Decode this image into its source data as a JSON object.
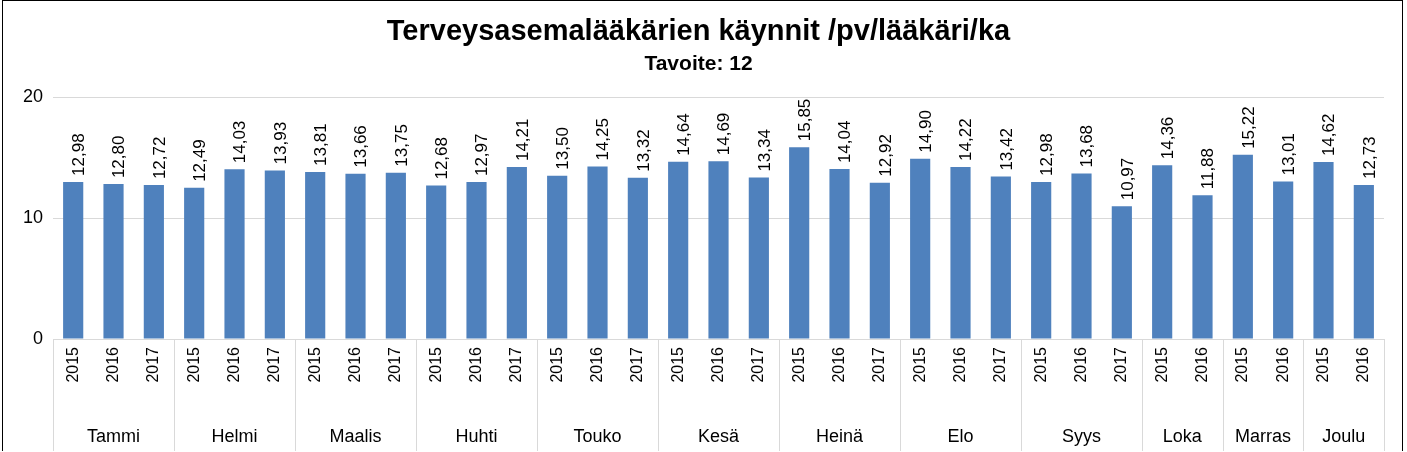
{
  "chart_data": {
    "type": "bar",
    "title": "Terveysasemalääkärien käynnit /pv/lääkäri/ka",
    "subtitle": "Tavoite: 12",
    "categories": [
      "2015",
      "2016",
      "2017",
      "2015",
      "2016",
      "2017",
      "2015",
      "2016",
      "2017",
      "2015",
      "2016",
      "2017",
      "2015",
      "2016",
      "2017",
      "2015",
      "2016",
      "2017",
      "2015",
      "2016",
      "2017",
      "2015",
      "2016",
      "2017",
      "2015",
      "2016",
      "2017",
      "2015",
      "2016",
      "2015",
      "2016",
      "2015",
      "2016"
    ],
    "values": [
      12.98,
      12.8,
      12.72,
      12.49,
      14.03,
      13.93,
      13.81,
      13.66,
      13.75,
      12.68,
      12.97,
      14.21,
      13.5,
      14.25,
      13.32,
      14.64,
      14.69,
      13.34,
      15.85,
      14.04,
      12.92,
      14.9,
      14.22,
      13.42,
      12.98,
      13.68,
      10.97,
      14.36,
      11.88,
      15.22,
      13.01,
      14.62,
      12.73
    ],
    "value_labels": [
      "12,98",
      "12,80",
      "12,72",
      "12,49",
      "14,03",
      "13,93",
      "13,81",
      "13,66",
      "13,75",
      "12,68",
      "12,97",
      "14,21",
      "13,50",
      "14,25",
      "13,32",
      "14,64",
      "14,69",
      "13,34",
      "15,85",
      "14,04",
      "12,92",
      "14,90",
      "14,22",
      "13,42",
      "12,98",
      "13,68",
      "10,97",
      "14,36",
      "11,88",
      "15,22",
      "13,01",
      "14,62",
      "12,73"
    ],
    "color": "#4f81bd",
    "ylim": [
      0,
      20
    ],
    "yticks": [
      0,
      10,
      20
    ],
    "grid": "y",
    "annotations": [
      "Tammi",
      "Helmi",
      "Maalis",
      "Huhti",
      "Touko",
      "Kesä",
      "Heinä",
      "Elo",
      "Syys",
      "Loka",
      "Marras",
      "Joulu"
    ]
  }
}
